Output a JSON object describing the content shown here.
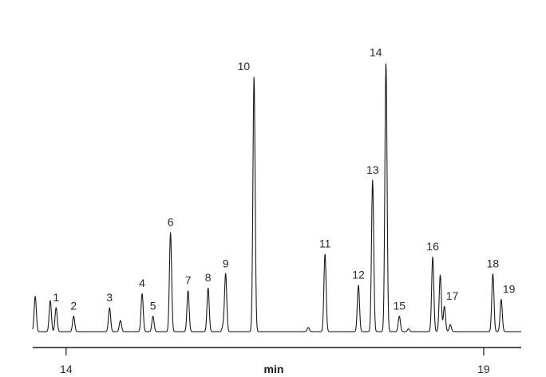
{
  "chart_data": {
    "type": "line",
    "xlabel": "min",
    "xticks": [
      14,
      19
    ],
    "xlim": [
      13.6,
      19.45
    ],
    "ylim": [
      0,
      100
    ],
    "grid": false,
    "legend": "none",
    "line_color": "#1a1a1a",
    "baseline": 1.5,
    "peaks": [
      {
        "t": 13.63,
        "h": 12.5,
        "label": ""
      },
      {
        "t": 13.81,
        "h": 11.0,
        "label": ""
      },
      {
        "t": 13.88,
        "h": 8.5,
        "label": "1"
      },
      {
        "t": 14.09,
        "h": 5.5,
        "label": "2"
      },
      {
        "t": 14.52,
        "h": 8.5,
        "label": "3"
      },
      {
        "t": 14.65,
        "h": 4.0,
        "label": ""
      },
      {
        "t": 14.91,
        "h": 13.5,
        "label": "4"
      },
      {
        "t": 15.04,
        "h": 5.5,
        "label": "5"
      },
      {
        "t": 15.25,
        "h": 35.0,
        "label": "6"
      },
      {
        "t": 15.46,
        "h": 14.5,
        "label": "7"
      },
      {
        "t": 15.7,
        "h": 15.5,
        "label": "8"
      },
      {
        "t": 15.88,
        "h": 2.0,
        "label": ""
      },
      {
        "t": 15.91,
        "h": 20.5,
        "label": "9"
      },
      {
        "t": 16.25,
        "h": 90.0,
        "label": "10"
      },
      {
        "t": 16.9,
        "h": 1.5,
        "label": ""
      },
      {
        "t": 17.1,
        "h": 27.5,
        "label": "11"
      },
      {
        "t": 17.5,
        "h": 16.5,
        "label": "12"
      },
      {
        "t": 17.67,
        "h": 53.5,
        "label": "13"
      },
      {
        "t": 17.83,
        "h": 95.0,
        "label": "14"
      },
      {
        "t": 17.99,
        "h": 5.5,
        "label": "15"
      },
      {
        "t": 18.1,
        "h": 1.0,
        "label": ""
      },
      {
        "t": 18.39,
        "h": 26.5,
        "label": "16"
      },
      {
        "t": 18.48,
        "h": 20.0,
        "label": ""
      },
      {
        "t": 18.53,
        "h": 9.0,
        "label": "17"
      },
      {
        "t": 18.6,
        "h": 2.5,
        "label": ""
      },
      {
        "t": 19.11,
        "h": 20.5,
        "label": "18"
      },
      {
        "t": 19.21,
        "h": 11.5,
        "label": "19"
      }
    ]
  }
}
